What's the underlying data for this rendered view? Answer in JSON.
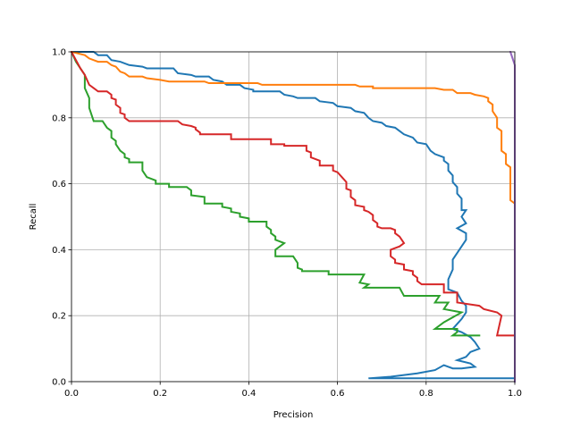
{
  "chart_data": {
    "type": "line",
    "title": "",
    "xlabel": "Precision",
    "ylabel": "Recall",
    "xlim": [
      0,
      1
    ],
    "ylim": [
      0,
      1
    ],
    "grid": true,
    "legend": "none",
    "x_ticks": [
      0.0,
      0.2,
      0.4,
      0.6,
      0.8,
      1.0
    ],
    "y_ticks": [
      0.0,
      0.2,
      0.4,
      0.6,
      0.8,
      1.0
    ],
    "x_tick_labels": [
      "0.0",
      "0.2",
      "0.4",
      "0.6",
      "0.8",
      "1.0"
    ],
    "y_tick_labels": [
      "0.0",
      "0.2",
      "0.4",
      "0.6",
      "0.8",
      "1.0"
    ],
    "series": [
      {
        "color": "#1f77b4",
        "points": [
          [
            0.0,
            1.0
          ],
          [
            0.05,
            1.0
          ],
          [
            0.06,
            0.99
          ],
          [
            0.08,
            0.99
          ],
          [
            0.09,
            0.975
          ],
          [
            0.11,
            0.97
          ],
          [
            0.13,
            0.96
          ],
          [
            0.16,
            0.955
          ],
          [
            0.17,
            0.95
          ],
          [
            0.23,
            0.95
          ],
          [
            0.24,
            0.935
          ],
          [
            0.27,
            0.93
          ],
          [
            0.28,
            0.925
          ],
          [
            0.31,
            0.925
          ],
          [
            0.32,
            0.915
          ],
          [
            0.34,
            0.91
          ],
          [
            0.35,
            0.9
          ],
          [
            0.38,
            0.9
          ],
          [
            0.39,
            0.89
          ],
          [
            0.41,
            0.885
          ],
          [
            0.41,
            0.88
          ],
          [
            0.47,
            0.88
          ],
          [
            0.48,
            0.87
          ],
          [
            0.5,
            0.865
          ],
          [
            0.51,
            0.86
          ],
          [
            0.55,
            0.86
          ],
          [
            0.56,
            0.85
          ],
          [
            0.59,
            0.845
          ],
          [
            0.6,
            0.835
          ],
          [
            0.63,
            0.83
          ],
          [
            0.64,
            0.82
          ],
          [
            0.66,
            0.815
          ],
          [
            0.67,
            0.8
          ],
          [
            0.68,
            0.79
          ],
          [
            0.7,
            0.785
          ],
          [
            0.71,
            0.775
          ],
          [
            0.73,
            0.77
          ],
          [
            0.74,
            0.76
          ],
          [
            0.75,
            0.75
          ],
          [
            0.77,
            0.74
          ],
          [
            0.78,
            0.725
          ],
          [
            0.8,
            0.72
          ],
          [
            0.81,
            0.7
          ],
          [
            0.82,
            0.69
          ],
          [
            0.84,
            0.68
          ],
          [
            0.84,
            0.67
          ],
          [
            0.85,
            0.66
          ],
          [
            0.85,
            0.64
          ],
          [
            0.86,
            0.625
          ],
          [
            0.86,
            0.605
          ],
          [
            0.87,
            0.59
          ],
          [
            0.87,
            0.57
          ],
          [
            0.88,
            0.555
          ],
          [
            0.88,
            0.535
          ],
          [
            0.88,
            0.52
          ],
          [
            0.89,
            0.52
          ],
          [
            0.88,
            0.5
          ],
          [
            0.89,
            0.48
          ],
          [
            0.87,
            0.465
          ],
          [
            0.89,
            0.45
          ],
          [
            0.89,
            0.43
          ],
          [
            0.88,
            0.41
          ],
          [
            0.86,
            0.37
          ],
          [
            0.86,
            0.34
          ],
          [
            0.85,
            0.31
          ],
          [
            0.85,
            0.28
          ],
          [
            0.87,
            0.27
          ],
          [
            0.88,
            0.245
          ],
          [
            0.89,
            0.23
          ],
          [
            0.89,
            0.21
          ],
          [
            0.88,
            0.19
          ],
          [
            0.87,
            0.175
          ],
          [
            0.86,
            0.16
          ],
          [
            0.88,
            0.15
          ],
          [
            0.9,
            0.135
          ],
          [
            0.91,
            0.12
          ],
          [
            0.92,
            0.1
          ],
          [
            0.9,
            0.09
          ],
          [
            0.89,
            0.075
          ],
          [
            0.87,
            0.065
          ],
          [
            0.9,
            0.055
          ],
          [
            0.91,
            0.045
          ],
          [
            0.88,
            0.04
          ],
          [
            0.86,
            0.04
          ],
          [
            0.84,
            0.05
          ],
          [
            0.82,
            0.035
          ],
          [
            0.78,
            0.025
          ],
          [
            0.72,
            0.015
          ],
          [
            0.67,
            0.01
          ],
          [
            1.0,
            0.01
          ]
        ]
      },
      {
        "color": "#ff7f0e",
        "points": [
          [
            0.0,
            1.0
          ],
          [
            0.03,
            0.99
          ],
          [
            0.04,
            0.98
          ],
          [
            0.06,
            0.97
          ],
          [
            0.08,
            0.97
          ],
          [
            0.09,
            0.96
          ],
          [
            0.1,
            0.955
          ],
          [
            0.11,
            0.94
          ],
          [
            0.12,
            0.935
          ],
          [
            0.13,
            0.925
          ],
          [
            0.16,
            0.925
          ],
          [
            0.17,
            0.92
          ],
          [
            0.2,
            0.915
          ],
          [
            0.22,
            0.91
          ],
          [
            0.3,
            0.91
          ],
          [
            0.31,
            0.905
          ],
          [
            0.42,
            0.905
          ],
          [
            0.43,
            0.9
          ],
          [
            0.64,
            0.9
          ],
          [
            0.65,
            0.895
          ],
          [
            0.68,
            0.895
          ],
          [
            0.68,
            0.89
          ],
          [
            0.82,
            0.89
          ],
          [
            0.84,
            0.885
          ],
          [
            0.86,
            0.885
          ],
          [
            0.87,
            0.875
          ],
          [
            0.9,
            0.875
          ],
          [
            0.91,
            0.87
          ],
          [
            0.93,
            0.865
          ],
          [
            0.94,
            0.86
          ],
          [
            0.94,
            0.85
          ],
          [
            0.95,
            0.84
          ],
          [
            0.95,
            0.82
          ],
          [
            0.96,
            0.8
          ],
          [
            0.96,
            0.77
          ],
          [
            0.97,
            0.76
          ],
          [
            0.97,
            0.7
          ],
          [
            0.98,
            0.69
          ],
          [
            0.98,
            0.66
          ],
          [
            0.99,
            0.65
          ],
          [
            0.99,
            0.55
          ],
          [
            1.0,
            0.54
          ],
          [
            1.0,
            0.42
          ]
        ]
      },
      {
        "color": "#2ca02c",
        "points": [
          [
            0.0,
            1.0
          ],
          [
            0.01,
            0.97
          ],
          [
            0.02,
            0.95
          ],
          [
            0.03,
            0.93
          ],
          [
            0.03,
            0.89
          ],
          [
            0.04,
            0.86
          ],
          [
            0.04,
            0.83
          ],
          [
            0.05,
            0.79
          ],
          [
            0.07,
            0.79
          ],
          [
            0.08,
            0.77
          ],
          [
            0.09,
            0.76
          ],
          [
            0.09,
            0.74
          ],
          [
            0.1,
            0.73
          ],
          [
            0.1,
            0.72
          ],
          [
            0.11,
            0.7
          ],
          [
            0.12,
            0.69
          ],
          [
            0.12,
            0.68
          ],
          [
            0.13,
            0.675
          ],
          [
            0.13,
            0.665
          ],
          [
            0.16,
            0.665
          ],
          [
            0.16,
            0.64
          ],
          [
            0.17,
            0.62
          ],
          [
            0.19,
            0.61
          ],
          [
            0.19,
            0.6
          ],
          [
            0.22,
            0.6
          ],
          [
            0.22,
            0.59
          ],
          [
            0.26,
            0.59
          ],
          [
            0.27,
            0.58
          ],
          [
            0.27,
            0.565
          ],
          [
            0.3,
            0.56
          ],
          [
            0.3,
            0.54
          ],
          [
            0.34,
            0.54
          ],
          [
            0.34,
            0.53
          ],
          [
            0.36,
            0.525
          ],
          [
            0.36,
            0.515
          ],
          [
            0.38,
            0.51
          ],
          [
            0.38,
            0.5
          ],
          [
            0.4,
            0.495
          ],
          [
            0.4,
            0.485
          ],
          [
            0.44,
            0.485
          ],
          [
            0.44,
            0.47
          ],
          [
            0.45,
            0.46
          ],
          [
            0.45,
            0.45
          ],
          [
            0.46,
            0.44
          ],
          [
            0.46,
            0.43
          ],
          [
            0.48,
            0.42
          ],
          [
            0.46,
            0.4
          ],
          [
            0.46,
            0.38
          ],
          [
            0.5,
            0.38
          ],
          [
            0.51,
            0.36
          ],
          [
            0.51,
            0.345
          ],
          [
            0.52,
            0.34
          ],
          [
            0.52,
            0.335
          ],
          [
            0.58,
            0.335
          ],
          [
            0.58,
            0.325
          ],
          [
            0.66,
            0.325
          ],
          [
            0.65,
            0.3
          ],
          [
            0.67,
            0.295
          ],
          [
            0.66,
            0.285
          ],
          [
            0.74,
            0.285
          ],
          [
            0.75,
            0.26
          ],
          [
            0.83,
            0.26
          ],
          [
            0.82,
            0.24
          ],
          [
            0.85,
            0.24
          ],
          [
            0.84,
            0.22
          ],
          [
            0.88,
            0.21
          ],
          [
            0.84,
            0.18
          ],
          [
            0.82,
            0.16
          ],
          [
            0.87,
            0.16
          ],
          [
            0.87,
            0.15
          ],
          [
            0.86,
            0.14
          ],
          [
            0.92,
            0.14
          ],
          [
            0.92,
            0.14
          ]
        ]
      },
      {
        "color": "#d62728",
        "points": [
          [
            0.0,
            1.0
          ],
          [
            0.02,
            0.95
          ],
          [
            0.03,
            0.93
          ],
          [
            0.04,
            0.9
          ],
          [
            0.05,
            0.89
          ],
          [
            0.06,
            0.88
          ],
          [
            0.08,
            0.88
          ],
          [
            0.09,
            0.87
          ],
          [
            0.09,
            0.86
          ],
          [
            0.1,
            0.855
          ],
          [
            0.1,
            0.84
          ],
          [
            0.11,
            0.83
          ],
          [
            0.11,
            0.815
          ],
          [
            0.12,
            0.81
          ],
          [
            0.12,
            0.8
          ],
          [
            0.13,
            0.79
          ],
          [
            0.24,
            0.79
          ],
          [
            0.25,
            0.78
          ],
          [
            0.27,
            0.775
          ],
          [
            0.28,
            0.77
          ],
          [
            0.28,
            0.765
          ],
          [
            0.29,
            0.755
          ],
          [
            0.29,
            0.75
          ],
          [
            0.36,
            0.75
          ],
          [
            0.36,
            0.735
          ],
          [
            0.45,
            0.735
          ],
          [
            0.45,
            0.72
          ],
          [
            0.48,
            0.72
          ],
          [
            0.48,
            0.715
          ],
          [
            0.53,
            0.715
          ],
          [
            0.53,
            0.7
          ],
          [
            0.54,
            0.695
          ],
          [
            0.54,
            0.68
          ],
          [
            0.55,
            0.675
          ],
          [
            0.56,
            0.67
          ],
          [
            0.56,
            0.655
          ],
          [
            0.59,
            0.655
          ],
          [
            0.59,
            0.64
          ],
          [
            0.6,
            0.635
          ],
          [
            0.61,
            0.62
          ],
          [
            0.62,
            0.605
          ],
          [
            0.62,
            0.585
          ],
          [
            0.63,
            0.58
          ],
          [
            0.63,
            0.56
          ],
          [
            0.64,
            0.55
          ],
          [
            0.64,
            0.535
          ],
          [
            0.66,
            0.53
          ],
          [
            0.66,
            0.52
          ],
          [
            0.67,
            0.515
          ],
          [
            0.68,
            0.505
          ],
          [
            0.68,
            0.49
          ],
          [
            0.69,
            0.48
          ],
          [
            0.69,
            0.47
          ],
          [
            0.7,
            0.465
          ],
          [
            0.72,
            0.465
          ],
          [
            0.73,
            0.46
          ],
          [
            0.73,
            0.45
          ],
          [
            0.74,
            0.44
          ],
          [
            0.75,
            0.42
          ],
          [
            0.74,
            0.41
          ],
          [
            0.72,
            0.4
          ],
          [
            0.72,
            0.38
          ],
          [
            0.73,
            0.37
          ],
          [
            0.73,
            0.36
          ],
          [
            0.75,
            0.355
          ],
          [
            0.75,
            0.34
          ],
          [
            0.77,
            0.335
          ],
          [
            0.77,
            0.325
          ],
          [
            0.78,
            0.315
          ],
          [
            0.78,
            0.305
          ],
          [
            0.79,
            0.295
          ],
          [
            0.84,
            0.295
          ],
          [
            0.84,
            0.27
          ],
          [
            0.87,
            0.27
          ],
          [
            0.87,
            0.24
          ],
          [
            0.92,
            0.23
          ],
          [
            0.93,
            0.22
          ],
          [
            0.96,
            0.21
          ],
          [
            0.97,
            0.2
          ],
          [
            0.96,
            0.14
          ],
          [
            1.0,
            0.14
          ]
        ]
      },
      {
        "color": "#9467bd",
        "points": [
          [
            0.99,
            1.0
          ],
          [
            0.995,
            0.98
          ],
          [
            1.0,
            0.96
          ],
          [
            1.0,
            0.0
          ]
        ]
      }
    ]
  }
}
